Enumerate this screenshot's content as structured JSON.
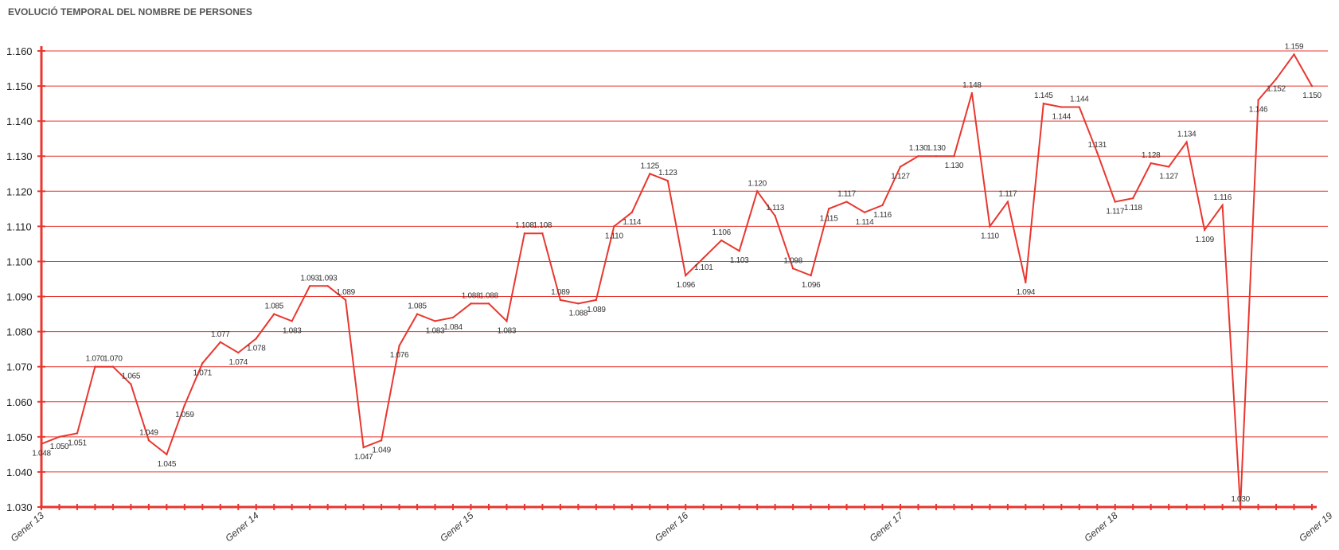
{
  "chart_data": {
    "type": "line",
    "title": "EVOLUCIÓ TEMPORAL DEL NOMBRE DE PERSONES",
    "y_tick_labels": [
      "1.030",
      "1.040",
      "1.050",
      "1.060",
      "1.070",
      "1.080",
      "1.090",
      "1.100",
      "1.110",
      "1.120",
      "1.130",
      "1.140",
      "1.150",
      "1.160"
    ],
    "ylim": [
      1030,
      1160
    ],
    "y_step": 10,
    "grid": true,
    "colors": {
      "line": "#e8372f",
      "grid": "#e8372f",
      "axis": "#e8372f"
    },
    "x_tick_labels": [
      "Gener 13",
      "Gener 14",
      "Gener 15",
      "Gener 16",
      "Gener 17",
      "Gener 18",
      "Gener 19"
    ],
    "x_tick_label_indices": [
      0,
      12,
      24,
      36,
      48,
      60,
      72
    ],
    "series": [
      {
        "values": [
          1048,
          1050,
          1051,
          1070,
          1070,
          1065,
          1049,
          1045,
          1059,
          1071,
          1077,
          1074,
          1078,
          1085,
          1083,
          1093,
          1093,
          1089,
          1047,
          1049,
          1076,
          1085,
          1083,
          1084,
          1088,
          1088,
          1083,
          1108,
          1108,
          1089,
          1088,
          1089,
          1110,
          1114,
          1125,
          1123,
          1096,
          1101,
          1106,
          1103,
          1120,
          1113,
          1098,
          1096,
          1115,
          1117,
          1114,
          1116,
          1127,
          1130,
          1130,
          1130,
          1148,
          1110,
          1117,
          1094,
          1145,
          1144,
          1144,
          1131,
          1117,
          1118,
          1128,
          1127,
          1134,
          1109,
          1116,
          1030,
          1146,
          1152,
          1159,
          1150
        ],
        "labels": [
          "1.048",
          "1.050",
          "1.051",
          "1.070",
          "1.070",
          "1.065",
          "1.049",
          "1.045",
          "1.059",
          "1.071",
          "1.077",
          "1.074",
          "1.078",
          "1.085",
          "1.083",
          "1.093",
          "1.093",
          "1.089",
          "1.047",
          "1.049",
          "1.076",
          "1.085",
          "1.083",
          "1.084",
          "1.088",
          "1.088",
          "1.083",
          "1.108",
          "1.108",
          "1.089",
          "1.088",
          "1.089",
          "1.110",
          "1.114",
          "1.125",
          "1.123",
          "1.096",
          "1.101",
          "1.106",
          "1.103",
          "1.120",
          "1.113",
          "1.098",
          "1.096",
          "1.115",
          "1.117",
          "1.114",
          "1.116",
          "1.127",
          "1.130",
          "1.130",
          "1.130",
          "1.148",
          "1.110",
          "1.117",
          "1.094",
          "1.145",
          "1.144",
          "1.144",
          "1.131",
          "1.117",
          "1.118",
          "1.128",
          "1.127",
          "1.134",
          "1.109",
          "1.116",
          "1.030",
          "1.146",
          "1.152",
          "1.159",
          "1.150"
        ]
      }
    ]
  }
}
